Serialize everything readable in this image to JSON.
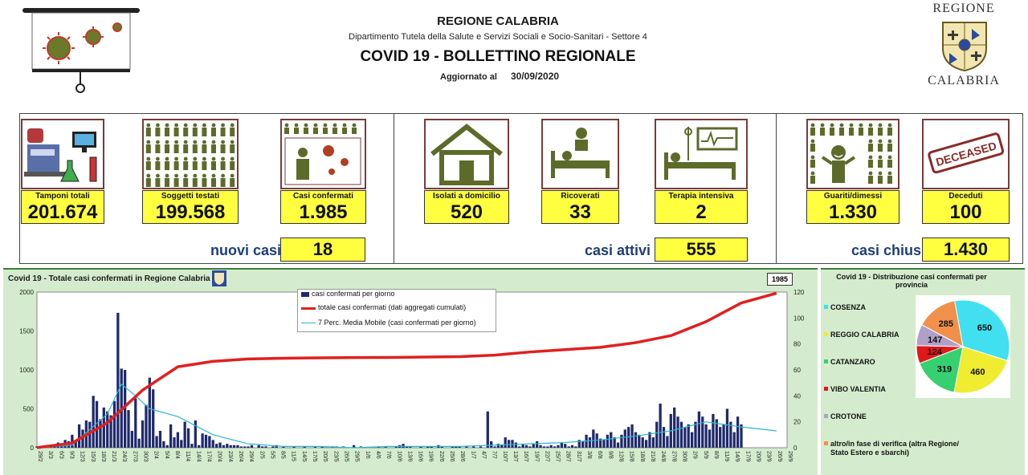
{
  "header": {
    "region": "REGIONE CALABRIA",
    "department": "Dipartimento Tutela della Salute e Servizi Sociali e Socio-Sanitari - Settore 4",
    "bulletin": "COVID 19 - BOLLETTINO REGIONALE",
    "updated_label": "Aggiornato al",
    "updated_date": "30/09/2020",
    "logo_top": "REGIONE",
    "logo_bottom": "CALABRIA"
  },
  "stats": {
    "tamponi": {
      "label": "Tamponi totali",
      "value": "201.674"
    },
    "soggetti": {
      "label": "Soggetti testati",
      "value": "199.568"
    },
    "confermati": {
      "label": "Casi confermati",
      "value": "1.985"
    },
    "isolati": {
      "label": "Isolati a domicilio",
      "value": "520"
    },
    "ricoverati": {
      "label": "Ricoverati",
      "value": "33"
    },
    "terapia": {
      "label": "Terapia intensiva",
      "value": "2"
    },
    "guariti": {
      "label": "Guariti/dimessi",
      "value": "1.330"
    },
    "deceduti": {
      "label": "Deceduti",
      "value": "100"
    }
  },
  "summary": {
    "nuovi_label": "nuovi casi",
    "nuovi_value": "18",
    "attivi_label": "casi attivi",
    "attivi_value": "555",
    "chiusi_label": "casi chiusi",
    "chiusi_value": "1.430"
  },
  "icons": {
    "deceased_stamp": "DECEASED"
  },
  "chart_data": [
    {
      "type": "bar",
      "title": "Covid 19 - Totale casi confermati in Regione Calabria",
      "callout": "1985",
      "ylim_left": [
        0,
        2000
      ],
      "ylim_right": [
        0,
        120
      ],
      "yticks_left": [
        "2000",
        "1500",
        "1000",
        "500",
        "0"
      ],
      "yticks_right": [
        "120",
        "100",
        "80",
        "60",
        "40",
        "20",
        "0"
      ],
      "xticks": [
        "29/2",
        "3/3",
        "6/3",
        "9/3",
        "12/3",
        "15/3",
        "18/3",
        "21/3",
        "24/3",
        "27/3",
        "30/3",
        "2/4",
        "5/4",
        "8/4",
        "11/4",
        "14/4",
        "17/4",
        "20/4",
        "23/4",
        "26/4",
        "29/4",
        "2/5",
        "5/5",
        "8/5",
        "11/5",
        "14/5",
        "17/5",
        "20/5",
        "23/5",
        "26/5",
        "29/5",
        "1/6",
        "4/6",
        "7/6",
        "10/6",
        "13/6",
        "16/6",
        "19/6",
        "22/6",
        "25/6",
        "28/6",
        "1/7",
        "4/7",
        "7/7",
        "10/7",
        "13/7",
        "16/7",
        "19/7",
        "22/7",
        "25/7",
        "28/7",
        "31/7",
        "3/8",
        "6/8",
        "9/8",
        "12/8",
        "15/8",
        "18/8",
        "21/8",
        "24/8",
        "27/8",
        "30/8",
        "2/9",
        "5/9",
        "8/9",
        "11/9",
        "14/9",
        "17/9",
        "20/9",
        "23/9",
        "26/9",
        "29/9"
      ],
      "legend": [
        {
          "name": "casi confermati per giorno",
          "color": "#1f2a6b"
        },
        {
          "name": "totale casi confermati (dati aggregati cumulati)",
          "color": "#e02020"
        },
        {
          "name": "7 Perc. Media Mobile (casi confermati per giorno)",
          "color": "#2bb7d8"
        }
      ],
      "series": [
        {
          "name": "casi confermati per giorno",
          "axis": "right",
          "color": "#1f2a6b",
          "values": [
            1,
            0,
            1,
            0,
            2,
            1,
            4,
            2,
            6,
            5,
            10,
            6,
            18,
            14,
            21,
            20,
            40,
            36,
            22,
            31,
            28,
            25,
            36,
            104,
            61,
            60,
            29,
            13,
            38,
            7,
            21,
            33,
            54,
            45,
            9,
            13,
            5,
            2,
            18,
            8,
            12,
            6,
            20,
            15,
            3,
            21,
            2,
            11,
            10,
            9,
            6,
            3,
            4,
            2,
            3,
            2,
            2,
            2,
            1,
            1,
            1,
            2,
            0,
            2,
            1,
            1,
            0,
            1,
            2,
            0,
            1,
            0,
            0,
            1,
            0,
            0,
            1,
            0,
            0,
            1,
            0,
            1,
            0,
            0,
            1,
            1,
            0,
            1,
            0,
            0,
            2,
            0,
            1,
            0,
            0,
            0,
            0,
            1,
            0,
            1,
            0,
            0,
            1,
            2,
            3,
            1,
            1,
            0,
            0,
            1,
            0,
            1,
            1,
            0,
            2,
            1,
            0,
            0,
            1,
            1,
            1,
            0,
            1,
            0,
            1,
            0,
            1,
            0,
            28,
            5,
            1,
            3,
            2,
            8,
            6,
            6,
            4,
            1,
            3,
            2,
            1,
            3,
            5,
            2,
            1,
            1,
            2,
            1,
            2,
            4,
            3,
            1,
            2,
            1,
            6,
            5,
            10,
            8,
            14,
            11,
            7,
            6,
            10,
            12,
            8,
            4,
            10,
            14,
            16,
            18,
            12,
            10,
            8,
            6,
            12,
            8,
            20,
            34,
            16,
            9,
            26,
            31,
            24,
            20,
            16,
            18,
            12,
            20,
            28,
            24,
            18,
            14,
            26,
            22,
            16,
            18,
            30,
            20,
            12,
            24,
            18
          ]
        },
        {
          "name": "totale casi confermati (dati aggregati cumulati)",
          "axis": "left",
          "color": "#e02020",
          "x_days": [
            0,
            10,
            20,
            30,
            40,
            50,
            60,
            70,
            80,
            90,
            100,
            110,
            120,
            130,
            140,
            150,
            160,
            170,
            180,
            190,
            200,
            210
          ],
          "values": [
            1,
            60,
            321,
            740,
            1040,
            1110,
            1140,
            1150,
            1155,
            1158,
            1160,
            1165,
            1170,
            1190,
            1230,
            1260,
            1290,
            1350,
            1440,
            1620,
            1860,
            1985
          ]
        },
        {
          "name": "7 Perc. Media Mobile (casi confermati per giorno)",
          "axis": "right",
          "color": "#2bb7d8",
          "x_days": [
            0,
            10,
            20,
            24,
            28,
            32,
            40,
            50,
            60,
            70,
            80,
            90,
            100,
            110,
            120,
            130,
            140,
            150,
            160,
            170,
            180,
            190,
            200,
            210
          ],
          "values": [
            0,
            2,
            26,
            49,
            40,
            30,
            24,
            10,
            3,
            1,
            1,
            0,
            1,
            1,
            1,
            2,
            3,
            4,
            6,
            9,
            13,
            20,
            16,
            13
          ]
        }
      ]
    },
    {
      "type": "pie",
      "title": "Covid 19 - Distribuzione casi confermati per provincia",
      "slices": [
        {
          "name": "COSENZA",
          "value": 650,
          "color": "#40e0f0"
        },
        {
          "name": "REGGIO CALABRIA",
          "value": 460,
          "color": "#f0ec30"
        },
        {
          "name": "CATANZARO",
          "value": 319,
          "color": "#36d070"
        },
        {
          "name": "VIBO VALENTIA",
          "value": 124,
          "color": "#e01818"
        },
        {
          "name": "CROTONE",
          "value": 147,
          "color": "#b0a0c8"
        },
        {
          "name": "altro/in fase di verifica (altra Regione/ Stato Estero e sbarchi)",
          "value": 285,
          "color": "#f0904a"
        }
      ]
    }
  ]
}
